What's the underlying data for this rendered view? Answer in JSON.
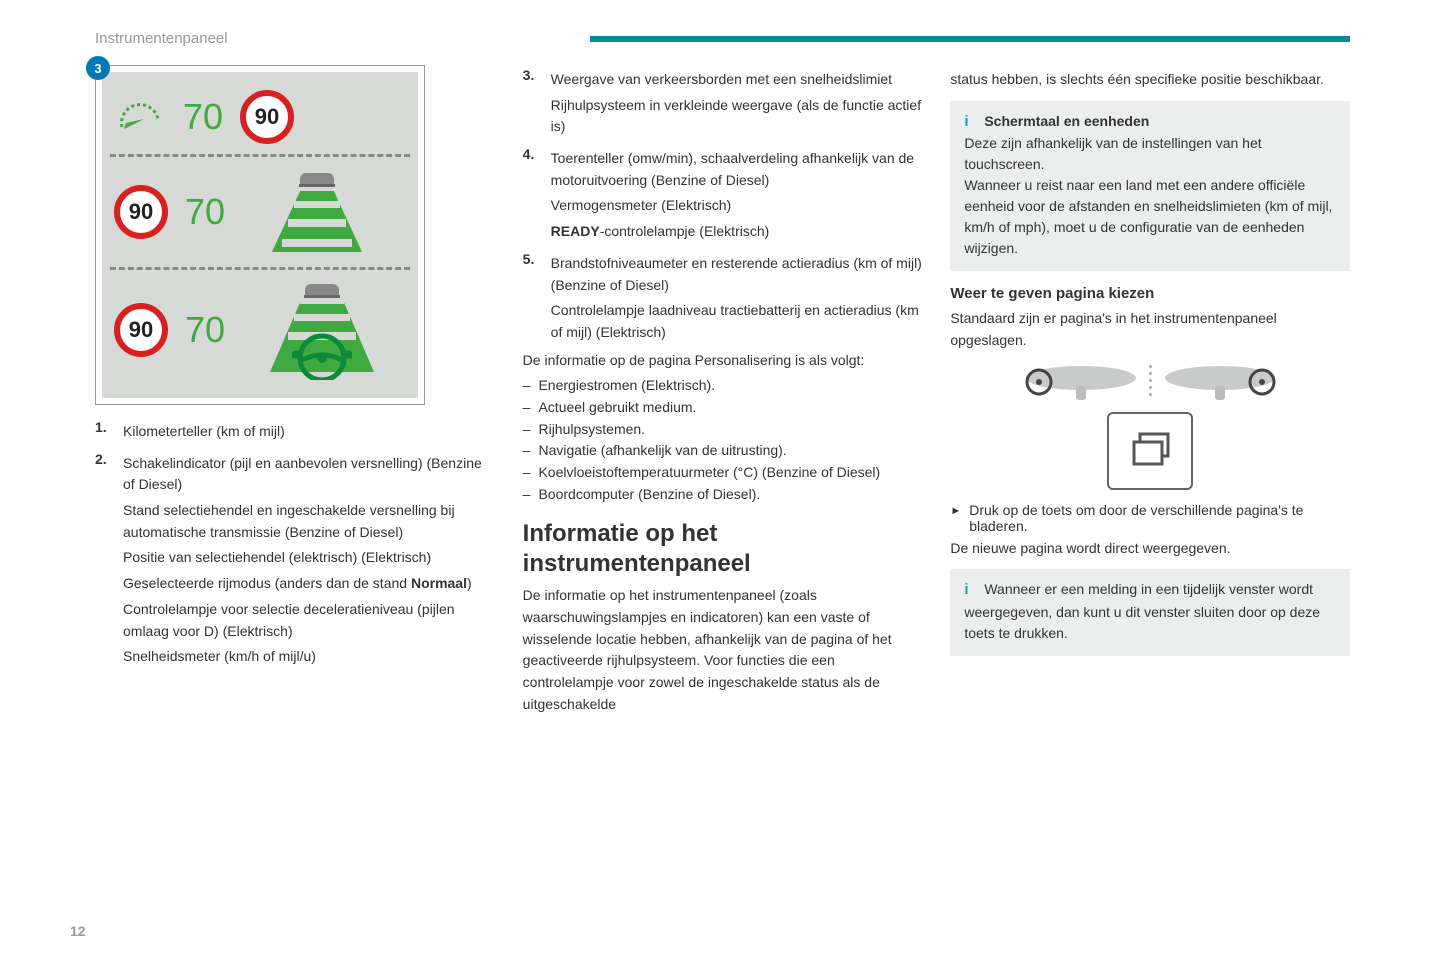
{
  "header": {
    "title": "Instrumentenpaneel"
  },
  "badge3": "3",
  "dash": {
    "row1": {
      "green": "70",
      "sign": "90"
    },
    "row2": {
      "sign": "90",
      "green": "70"
    },
    "row3": {
      "sign": "90",
      "green": "70"
    }
  },
  "col1_list": [
    {
      "num": "1.",
      "lines": [
        "Kilometerteller (km of mijl)"
      ]
    },
    {
      "num": "2.",
      "lines": [
        "Schakelindicator (pijl en aanbevolen versnelling) (Benzine of Diesel)",
        "Stand selectiehendel en ingeschakelde versnelling bij automatische transmissie (Benzine of Diesel)",
        "Positie van selectiehendel (elektrisch) (Elektrisch)",
        "Geselecteerde rijmodus (anders dan de stand <b>Normaal</b>)",
        "Controlelampje voor selectie deceleratieniveau (pijlen omlaag voor D) (Elektrisch)",
        "Snelheidsmeter (km/h of mijl/u)"
      ]
    }
  ],
  "col2_list": [
    {
      "num": "3.",
      "lines": [
        "Weergave van verkeersborden met een snelheidslimiet",
        "Rijhulpsysteem in verkleinde weergave (als de functie actief is)"
      ]
    },
    {
      "num": "4.",
      "lines": [
        "Toerenteller (omw/min), schaalverdeling afhankelijk van de motoruitvoering (Benzine of Diesel)",
        "Vermogensmeter (Elektrisch)",
        "<b>READY</b>-controlelampje (Elektrisch)"
      ]
    },
    {
      "num": "5.",
      "lines": [
        "Brandstofniveaumeter en resterende actieradius (km of mijl) (Benzine of Diesel)",
        "Controlelampje laadniveau tractiebatterij en actieradius (km of mijl) (Elektrisch)"
      ]
    }
  ],
  "col2_intro": "De informatie op de pagina Personalisering is als volgt:",
  "col2_bullets": [
    "Energiestromen (Elektrisch).",
    "Actueel gebruikt medium.",
    "Rijhulpsystemen.",
    "Navigatie (afhankelijk van de uitrusting).",
    "Koelvloeistoftemperatuurmeter (°C) (Benzine of Diesel)",
    "Boordcomputer (Benzine of Diesel)."
  ],
  "col2_h2": "Informatie op het instrumentenpaneel",
  "col2_para": "De informatie op het instrumentenpaneel (zoals waarschuwingslampjes en indicatoren) kan een vaste of wisselende locatie hebben, afhankelijk van de pagina of het geactiveerde rijhulpsysteem. Voor functies die een controlelampje voor zowel de ingeschakelde status als de uitgeschakelde",
  "col3_cont": "status hebben, is slechts één specifieke positie beschikbaar.",
  "col3_box1_lead": "Schermtaal en eenheden",
  "col3_box1_body": "Deze zijn afhankelijk van de instellingen van het touchscreen.<br>Wanneer u reist naar een land met een andere officiële eenheid voor de afstanden en snelheidslimieten (km of mijl, km/h of mph), moet u de configuratie van de eenheden wijzigen.",
  "col3_h3": "Weer te geven pagina kiezen",
  "col3_p1": "Standaard zijn er pagina's in het instrumentenpaneel opgeslagen.",
  "col3_arrow": "Druk op de toets om door de verschillende pagina's te bladeren.",
  "col3_p2": "De nieuwe pagina wordt direct weergegeven.",
  "col3_box2": "Wanneer er een melding in een tijdelijk venster wordt weergegeven, dan kunt u dit venster sluiten door op deze toets te drukken.",
  "pageNum": "12",
  "colors": {
    "teal": "#008b9b",
    "red": "#d92020",
    "green": "#3faa3f",
    "textgrey": "#999"
  }
}
